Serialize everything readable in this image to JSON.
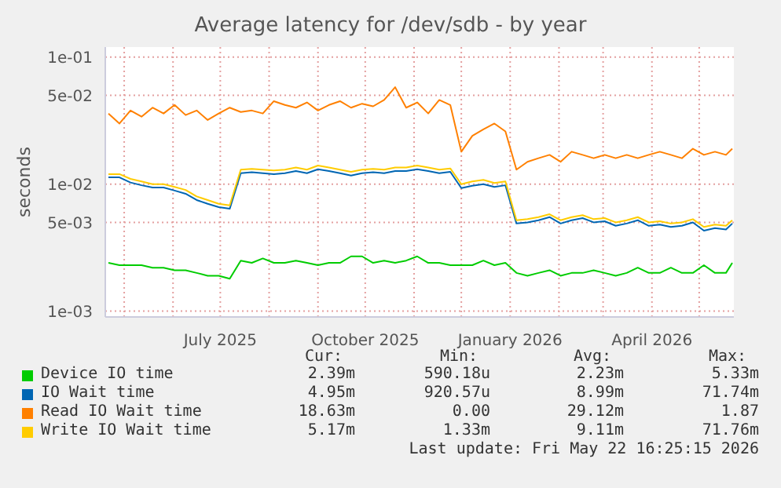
{
  "chart_data": {
    "type": "line",
    "title": "Average latency for /dev/sdb - by year",
    "ylabel": "seconds",
    "x": [
      "2025-04-21",
      "2025-04-28",
      "2025-05-05",
      "2025-05-12",
      "2025-05-19",
      "2025-05-26",
      "2025-06-02",
      "2025-06-09",
      "2025-06-16",
      "2025-06-23",
      "2025-06-30",
      "2025-07-07",
      "2025-07-14",
      "2025-07-21",
      "2025-07-28",
      "2025-08-04",
      "2025-08-11",
      "2025-08-18",
      "2025-08-25",
      "2025-09-01",
      "2025-09-08",
      "2025-09-15",
      "2025-09-22",
      "2025-09-29",
      "2025-10-06",
      "2025-10-13",
      "2025-10-20",
      "2025-10-27",
      "2025-11-03",
      "2025-11-10",
      "2025-11-17",
      "2025-11-24",
      "2025-12-01",
      "2025-12-08",
      "2025-12-15",
      "2025-12-22",
      "2025-12-29",
      "2026-01-05",
      "2026-01-12",
      "2026-01-19",
      "2026-01-26",
      "2026-02-02",
      "2026-02-09",
      "2026-02-16",
      "2026-02-23",
      "2026-03-02",
      "2026-03-09",
      "2026-03-16",
      "2026-03-23",
      "2026-03-30",
      "2026-04-06",
      "2026-04-13",
      "2026-04-20",
      "2026-04-27",
      "2026-05-04",
      "2026-05-11",
      "2026-05-18",
      "2026-05-22"
    ],
    "series": [
      {
        "name": "Device IO time",
        "color": "#00cc00",
        "values": [
          0.0024,
          0.0023,
          0.0023,
          0.0023,
          0.0022,
          0.0022,
          0.0021,
          0.0021,
          0.002,
          0.0019,
          0.0019,
          0.0018,
          0.0025,
          0.0024,
          0.0026,
          0.0024,
          0.0024,
          0.0025,
          0.0024,
          0.0023,
          0.0024,
          0.0024,
          0.0027,
          0.0027,
          0.0024,
          0.0025,
          0.0024,
          0.0025,
          0.0027,
          0.0024,
          0.0024,
          0.0023,
          0.0023,
          0.0023,
          0.0025,
          0.0023,
          0.0024,
          0.002,
          0.0019,
          0.002,
          0.0021,
          0.0019,
          0.002,
          0.002,
          0.0021,
          0.002,
          0.0019,
          0.002,
          0.0022,
          0.002,
          0.002,
          0.0022,
          0.002,
          0.002,
          0.0023,
          0.002,
          0.002,
          0.0024
        ]
      },
      {
        "name": "IO Wait time",
        "color": "#0066b3",
        "values": [
          0.0113,
          0.0113,
          0.0103,
          0.0098,
          0.0094,
          0.0094,
          0.0089,
          0.0084,
          0.0075,
          0.007,
          0.0066,
          0.0064,
          0.0122,
          0.0124,
          0.0122,
          0.012,
          0.0122,
          0.0127,
          0.0122,
          0.0131,
          0.0127,
          0.0122,
          0.0117,
          0.0122,
          0.0124,
          0.0122,
          0.0127,
          0.0127,
          0.0131,
          0.0127,
          0.0122,
          0.0125,
          0.0093,
          0.0097,
          0.01,
          0.0095,
          0.0098,
          0.0049,
          0.005,
          0.0052,
          0.0055,
          0.0049,
          0.0052,
          0.0054,
          0.005,
          0.0051,
          0.0047,
          0.0049,
          0.0052,
          0.0047,
          0.0048,
          0.0046,
          0.0047,
          0.005,
          0.0043,
          0.0045,
          0.0044,
          0.0049
        ]
      },
      {
        "name": "Read IO Wait time",
        "color": "#ff8000",
        "values": [
          0.036,
          0.03,
          0.038,
          0.034,
          0.04,
          0.036,
          0.042,
          0.035,
          0.038,
          0.032,
          0.036,
          0.04,
          0.037,
          0.038,
          0.036,
          0.045,
          0.042,
          0.04,
          0.044,
          0.038,
          0.042,
          0.045,
          0.04,
          0.043,
          0.041,
          0.046,
          0.058,
          0.04,
          0.044,
          0.036,
          0.046,
          0.042,
          0.018,
          0.024,
          0.027,
          0.03,
          0.026,
          0.013,
          0.015,
          0.016,
          0.017,
          0.015,
          0.018,
          0.017,
          0.016,
          0.017,
          0.016,
          0.017,
          0.016,
          0.017,
          0.018,
          0.017,
          0.016,
          0.019,
          0.017,
          0.018,
          0.017,
          0.019
        ]
      },
      {
        "name": "Write IO Wait time",
        "color": "#ffcc00",
        "values": [
          0.012,
          0.012,
          0.011,
          0.0105,
          0.01,
          0.01,
          0.0095,
          0.009,
          0.008,
          0.0075,
          0.007,
          0.0068,
          0.013,
          0.0132,
          0.013,
          0.0128,
          0.013,
          0.0135,
          0.013,
          0.014,
          0.0135,
          0.013,
          0.0125,
          0.013,
          0.0132,
          0.013,
          0.0135,
          0.0135,
          0.014,
          0.0135,
          0.013,
          0.0133,
          0.01,
          0.0105,
          0.0108,
          0.0102,
          0.0105,
          0.0052,
          0.0053,
          0.0055,
          0.0058,
          0.0052,
          0.0055,
          0.0057,
          0.0053,
          0.0054,
          0.005,
          0.0052,
          0.0055,
          0.005,
          0.0051,
          0.0049,
          0.005,
          0.0053,
          0.0046,
          0.0048,
          0.0047,
          0.0052
        ]
      }
    ],
    "log": "y",
    "ylim": [
      0.0009,
      0.12
    ],
    "yticks": [
      {
        "value": 0.001,
        "label": "1e-03"
      },
      {
        "value": 0.005,
        "label": "5e-03"
      },
      {
        "value": 0.01,
        "label": "1e-02"
      },
      {
        "value": 0.05,
        "label": "5e-02"
      },
      {
        "value": 0.1,
        "label": "1e-01"
      }
    ],
    "xlim": [
      "2025-04-19",
      "2026-05-23"
    ],
    "xticks": [
      {
        "value": "2025-05-01",
        "label": null
      },
      {
        "value": "2025-06-01",
        "label": null
      },
      {
        "value": "2025-07-01",
        "label": "July 2025"
      },
      {
        "value": "2025-08-01",
        "label": null
      },
      {
        "value": "2025-09-01",
        "label": null
      },
      {
        "value": "2025-10-01",
        "label": "October 2025"
      },
      {
        "value": "2025-11-01",
        "label": null
      },
      {
        "value": "2025-12-01",
        "label": null
      },
      {
        "value": "2026-01-01",
        "label": "January 2026"
      },
      {
        "value": "2026-02-01",
        "label": null
      },
      {
        "value": "2026-03-01",
        "label": null
      },
      {
        "value": "2026-04-01",
        "label": "April 2026"
      },
      {
        "value": "2026-05-01",
        "label": null
      }
    ],
    "grid": true,
    "legend": "bottom",
    "marker": "none",
    "line_style": "solid",
    "annotations": [
      "Cur:",
      "Min:",
      "Avg:",
      "Max:",
      "2.39m",
      "590.18u",
      "2.23m",
      "5.33m",
      "4.95m",
      "920.57u",
      "8.99m",
      "71.74m",
      "18.63m",
      "0.00",
      "29.12m",
      "1.87",
      "5.17m",
      "1.33m",
      "9.11m",
      "71.76m",
      "Last update: Fri May 22 16:25:15 2026"
    ]
  }
}
